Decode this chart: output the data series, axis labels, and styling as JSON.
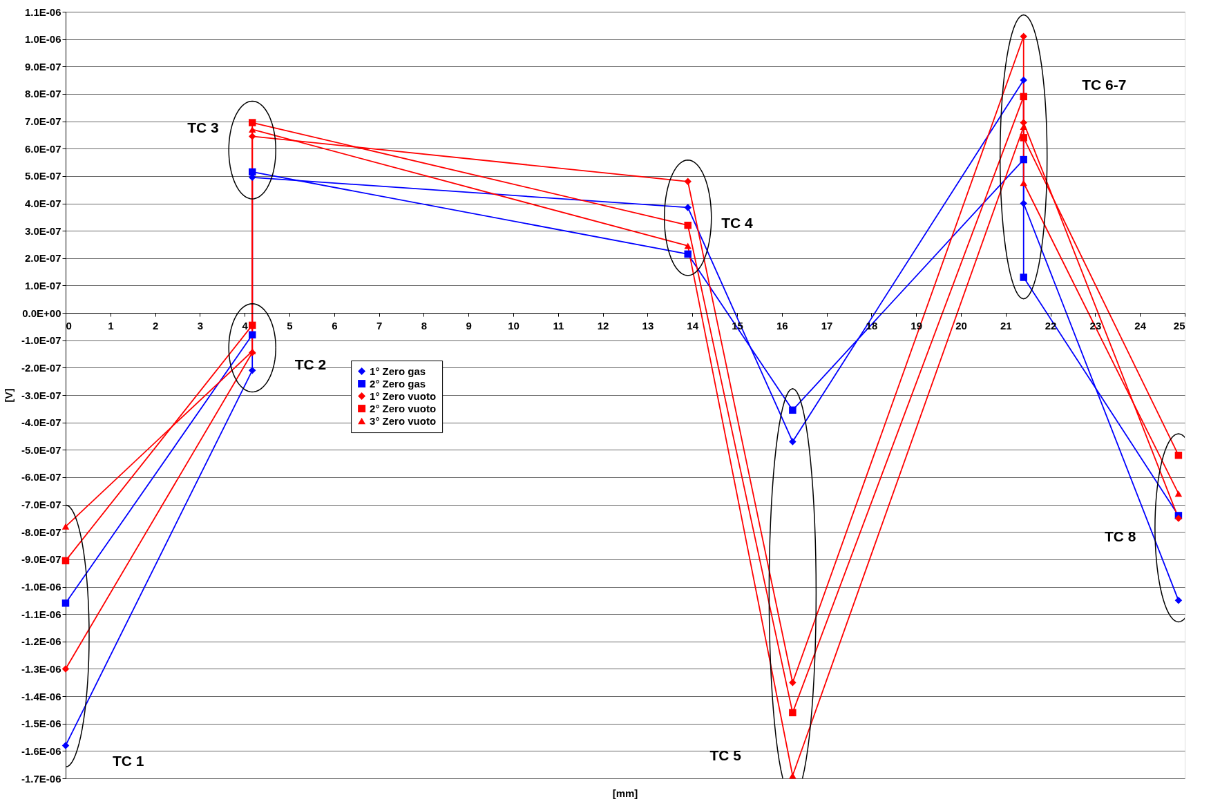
{
  "chart_data": {
    "type": "line",
    "xlabel": "[mm]",
    "ylabel": "[V]",
    "xlim": [
      0,
      25
    ],
    "xticks": [
      0,
      1,
      2,
      3,
      4,
      5,
      6,
      7,
      8,
      9,
      10,
      11,
      12,
      13,
      14,
      15,
      16,
      17,
      18,
      19,
      20,
      21,
      22,
      23,
      24,
      25
    ],
    "ylim": [
      -1.7e-06,
      1.1e-06
    ],
    "yticks": [
      {
        "value": 1.1e-06,
        "label": "1.1E-06"
      },
      {
        "value": 1e-06,
        "label": "1.0E-06"
      },
      {
        "value": 9e-07,
        "label": "9.0E-07"
      },
      {
        "value": 8e-07,
        "label": "8.0E-07"
      },
      {
        "value": 7e-07,
        "label": "7.0E-07"
      },
      {
        "value": 6e-07,
        "label": "6.0E-07"
      },
      {
        "value": 5e-07,
        "label": "5.0E-07"
      },
      {
        "value": 4e-07,
        "label": "4.0E-07"
      },
      {
        "value": 3e-07,
        "label": "3.0E-07"
      },
      {
        "value": 2e-07,
        "label": "2.0E-07"
      },
      {
        "value": 1e-07,
        "label": "1.0E-07"
      },
      {
        "value": 0,
        "label": "0.0E+00"
      },
      {
        "value": -1e-07,
        "label": "-1.0E-07"
      },
      {
        "value": -2e-07,
        "label": "-2.0E-07"
      },
      {
        "value": -3e-07,
        "label": "-3.0E-07"
      },
      {
        "value": -4e-07,
        "label": "-4.0E-07"
      },
      {
        "value": -5e-07,
        "label": "-5.0E-07"
      },
      {
        "value": -6e-07,
        "label": "-6.0E-07"
      },
      {
        "value": -7e-07,
        "label": "-7.0E-07"
      },
      {
        "value": -8e-07,
        "label": "-8.0E-07"
      },
      {
        "value": -9e-07,
        "label": "-9.0E-07"
      },
      {
        "value": -1e-06,
        "label": "-1.0E-06"
      },
      {
        "value": -1.1e-06,
        "label": "-1.1E-06"
      },
      {
        "value": -1.2e-06,
        "label": "-1.2E-06"
      },
      {
        "value": -1.3e-06,
        "label": "-1.3E-06"
      },
      {
        "value": -1.4e-06,
        "label": "-1.4E-06"
      },
      {
        "value": -1.5e-06,
        "label": "-1.5E-06"
      },
      {
        "value": -1.6e-06,
        "label": "-1.6E-06"
      },
      {
        "value": -1.7e-06,
        "label": "-1.7E-06"
      }
    ],
    "x": [
      0,
      4.17,
      4.17,
      13.9,
      16.24,
      21.4,
      21.4,
      24.86
    ],
    "series": [
      {
        "name": "1° Zero gas",
        "color": "#0000ff",
        "marker": "diamond",
        "values": [
          -1.58e-06,
          -2.1e-07,
          4.95e-07,
          3.85e-07,
          -4.7e-07,
          8.5e-07,
          4e-07,
          -1.05e-06
        ]
      },
      {
        "name": "2° Zero gas",
        "color": "#0000ff",
        "marker": "square",
        "values": [
          -1.06e-06,
          -8e-08,
          5.15e-07,
          2.15e-07,
          -3.55e-07,
          5.6e-07,
          1.3e-07,
          -7.4e-07
        ]
      },
      {
        "name": "1° Zero vuoto",
        "color": "#ff0000",
        "marker": "diamond",
        "values": [
          -1.3e-06,
          -1.45e-07,
          6.45e-07,
          4.8e-07,
          -1.35e-06,
          1.01e-06,
          6.95e-07,
          -7.5e-07
        ]
      },
      {
        "name": "2° Zero vuoto",
        "color": "#ff0000",
        "marker": "square",
        "values": [
          -9.05e-07,
          -4.5e-08,
          6.95e-07,
          3.2e-07,
          -1.46e-06,
          7.9e-07,
          6.4e-07,
          -5.2e-07
        ]
      },
      {
        "name": "3° Zero vuoto",
        "color": "#ff0000",
        "marker": "triangle",
        "values": [
          -7.8e-07,
          -1.4e-07,
          6.7e-07,
          2.45e-07,
          -1.69e-06,
          6.8e-07,
          4.75e-07,
          -6.6e-07
        ]
      }
    ],
    "annotations": [
      "TC 1",
      "TC 2",
      "TC 3",
      "TC 4",
      "TC 5",
      "TC 6-7",
      "TC 8"
    ],
    "grid": "y",
    "legend": "left",
    "line_style": "solid"
  }
}
